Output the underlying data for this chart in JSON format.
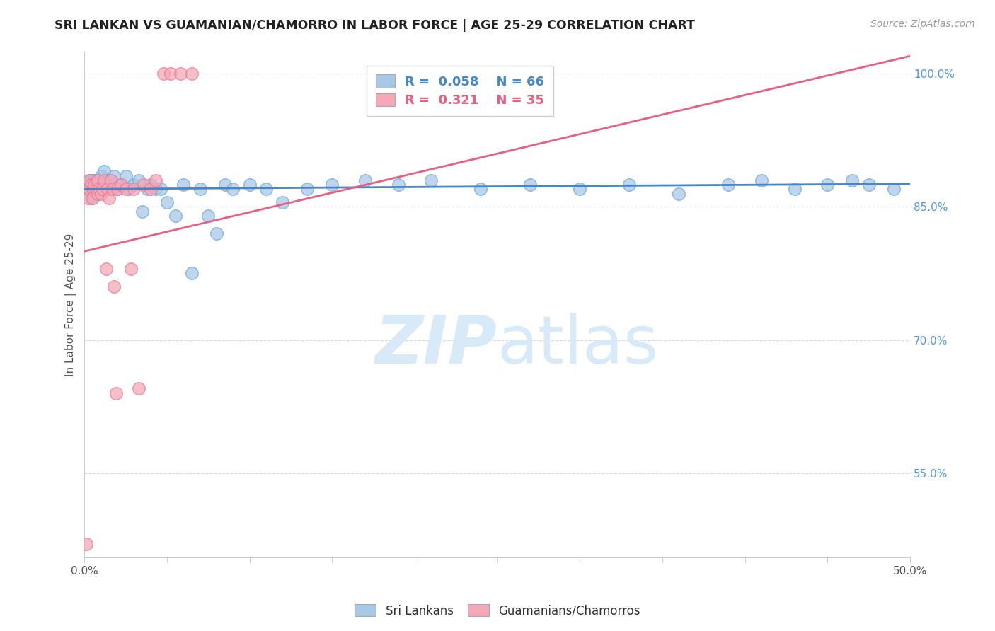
{
  "title": "SRI LANKAN VS GUAMANIAN/CHAMORRO IN LABOR FORCE | AGE 25-29 CORRELATION CHART",
  "source": "Source: ZipAtlas.com",
  "ylabel": "In Labor Force | Age 25-29",
  "xlim": [
    0.0,
    0.5
  ],
  "ylim": [
    0.455,
    1.025
  ],
  "R_blue": 0.058,
  "N_blue": 66,
  "R_pink": 0.321,
  "N_pink": 35,
  "blue_color": "#a8c8e8",
  "pink_color": "#f4a8b8",
  "blue_edge_color": "#6aaad4",
  "pink_edge_color": "#e87898",
  "blue_line_color": "#4488cc",
  "pink_line_color": "#e86080",
  "legend_label_blue": "Sri Lankans",
  "legend_label_pink": "Guamanians/Chamorros",
  "title_color": "#222222",
  "right_tick_color": "#5599dd",
  "grid_color": "#d8d8d8",
  "watermark_color": "#d8eaf8",
  "blue_x": [
    0.002,
    0.003,
    0.003,
    0.004,
    0.004,
    0.005,
    0.005,
    0.005,
    0.006,
    0.006,
    0.007,
    0.007,
    0.008,
    0.008,
    0.009,
    0.009,
    0.01,
    0.01,
    0.011,
    0.011,
    0.012,
    0.013,
    0.014,
    0.015,
    0.016,
    0.018,
    0.02,
    0.022,
    0.025,
    0.027,
    0.03,
    0.033,
    0.035,
    0.038,
    0.04,
    0.043,
    0.046,
    0.05,
    0.055,
    0.06,
    0.065,
    0.07,
    0.075,
    0.08,
    0.085,
    0.09,
    0.1,
    0.11,
    0.12,
    0.135,
    0.15,
    0.17,
    0.19,
    0.21,
    0.24,
    0.27,
    0.3,
    0.33,
    0.36,
    0.39,
    0.41,
    0.43,
    0.45,
    0.465,
    0.475,
    0.49
  ],
  "blue_y": [
    0.875,
    0.88,
    0.87,
    0.86,
    0.88,
    0.875,
    0.88,
    0.865,
    0.87,
    0.88,
    0.87,
    0.88,
    0.875,
    0.865,
    0.88,
    0.87,
    0.875,
    0.885,
    0.87,
    0.875,
    0.89,
    0.87,
    0.88,
    0.87,
    0.88,
    0.885,
    0.87,
    0.875,
    0.885,
    0.87,
    0.875,
    0.88,
    0.845,
    0.87,
    0.875,
    0.87,
    0.87,
    0.855,
    0.84,
    0.875,
    0.775,
    0.87,
    0.84,
    0.82,
    0.875,
    0.87,
    0.875,
    0.87,
    0.855,
    0.87,
    0.875,
    0.88,
    0.875,
    0.88,
    0.87,
    0.875,
    0.87,
    0.875,
    0.865,
    0.875,
    0.88,
    0.87,
    0.875,
    0.88,
    0.875,
    0.87
  ],
  "pink_x": [
    0.001,
    0.002,
    0.003,
    0.003,
    0.004,
    0.005,
    0.005,
    0.006,
    0.007,
    0.008,
    0.008,
    0.009,
    0.01,
    0.011,
    0.012,
    0.013,
    0.014,
    0.015,
    0.016,
    0.017,
    0.018,
    0.019,
    0.02,
    0.022,
    0.025,
    0.028,
    0.03,
    0.033,
    0.036,
    0.04,
    0.043,
    0.048,
    0.052,
    0.058,
    0.065
  ],
  "pink_y": [
    0.47,
    0.86,
    0.87,
    0.88,
    0.875,
    0.87,
    0.86,
    0.875,
    0.87,
    0.865,
    0.88,
    0.87,
    0.865,
    0.87,
    0.88,
    0.78,
    0.87,
    0.86,
    0.88,
    0.87,
    0.76,
    0.64,
    0.87,
    0.875,
    0.87,
    0.78,
    0.87,
    0.645,
    0.875,
    0.87,
    0.88,
    1.0,
    1.0,
    1.0,
    1.0
  ],
  "blue_trend_x": [
    0.0,
    0.5
  ],
  "blue_trend_y": [
    0.87,
    0.876
  ],
  "pink_trend_x": [
    0.0,
    0.5
  ],
  "pink_trend_y": [
    0.8,
    1.02
  ]
}
